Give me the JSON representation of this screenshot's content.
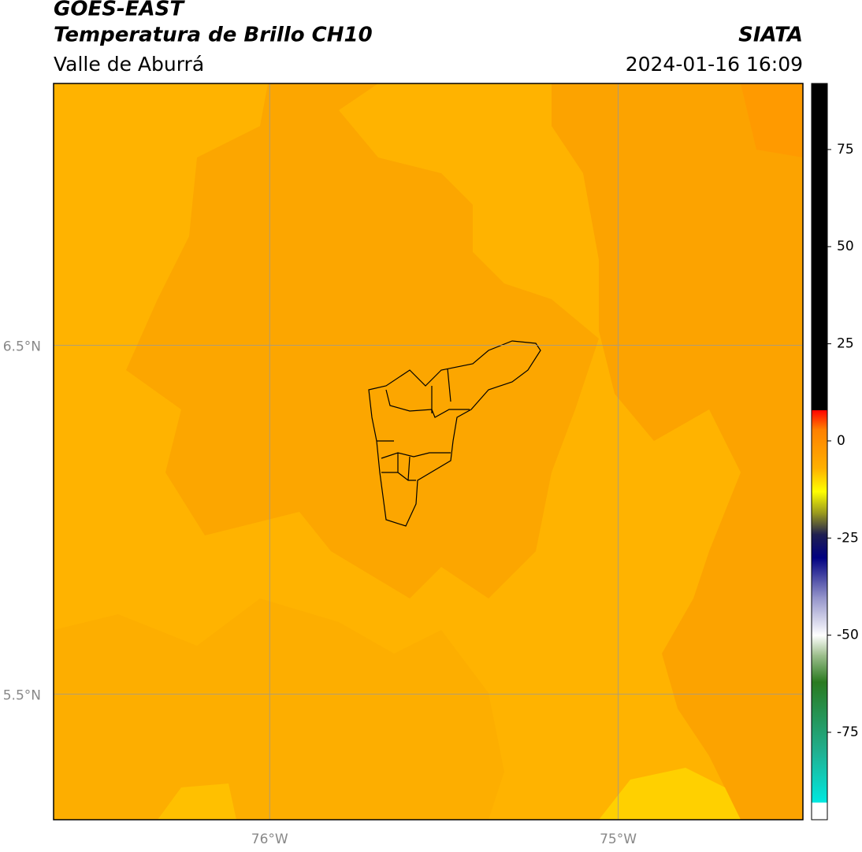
{
  "header": {
    "title": "GOES-EAST",
    "subtitle": "Temperatura de Brillo CH10",
    "region": "Valle de Aburrá",
    "source": "SIATA",
    "datetime": "2024-01-16 16:09"
  },
  "map": {
    "xlim": [
      -76.62,
      -74.47
    ],
    "ylim": [
      5.14,
      7.25
    ],
    "xticks": [
      {
        "value": -76,
        "label": "76°W"
      },
      {
        "value": -75,
        "label": "75°W"
      }
    ],
    "yticks": [
      {
        "value": 6.5,
        "label": "6.5°N"
      },
      {
        "value": 5.5,
        "label": "5.5°N"
      }
    ],
    "grid": true
  },
  "colorbar": {
    "lim": [
      -97.5,
      92
    ],
    "ticks": [
      75,
      50,
      25,
      0,
      -25,
      -50,
      -75
    ],
    "stops": [
      {
        "value": -97.5,
        "color": "#ffffff"
      },
      {
        "value": -93,
        "color": "#ffffff"
      },
      {
        "value": -93,
        "color": "#00e8e0"
      },
      {
        "value": -80,
        "color": "#20b090"
      },
      {
        "value": -62,
        "color": "#2a7a20"
      },
      {
        "value": -55,
        "color": "#a0c090"
      },
      {
        "value": -50,
        "color": "#ffffff"
      },
      {
        "value": -40,
        "color": "#9090c8"
      },
      {
        "value": -30,
        "color": "#000080"
      },
      {
        "value": -24,
        "color": "#202050"
      },
      {
        "value": -19,
        "color": "#909020"
      },
      {
        "value": -13,
        "color": "#ffff00"
      },
      {
        "value": -7,
        "color": "#ffb000"
      },
      {
        "value": 3,
        "color": "#ff8000"
      },
      {
        "value": 8,
        "color": "#ff0000"
      },
      {
        "value": 8,
        "color": "#000000"
      },
      {
        "value": 92,
        "color": "#000000"
      }
    ]
  }
}
